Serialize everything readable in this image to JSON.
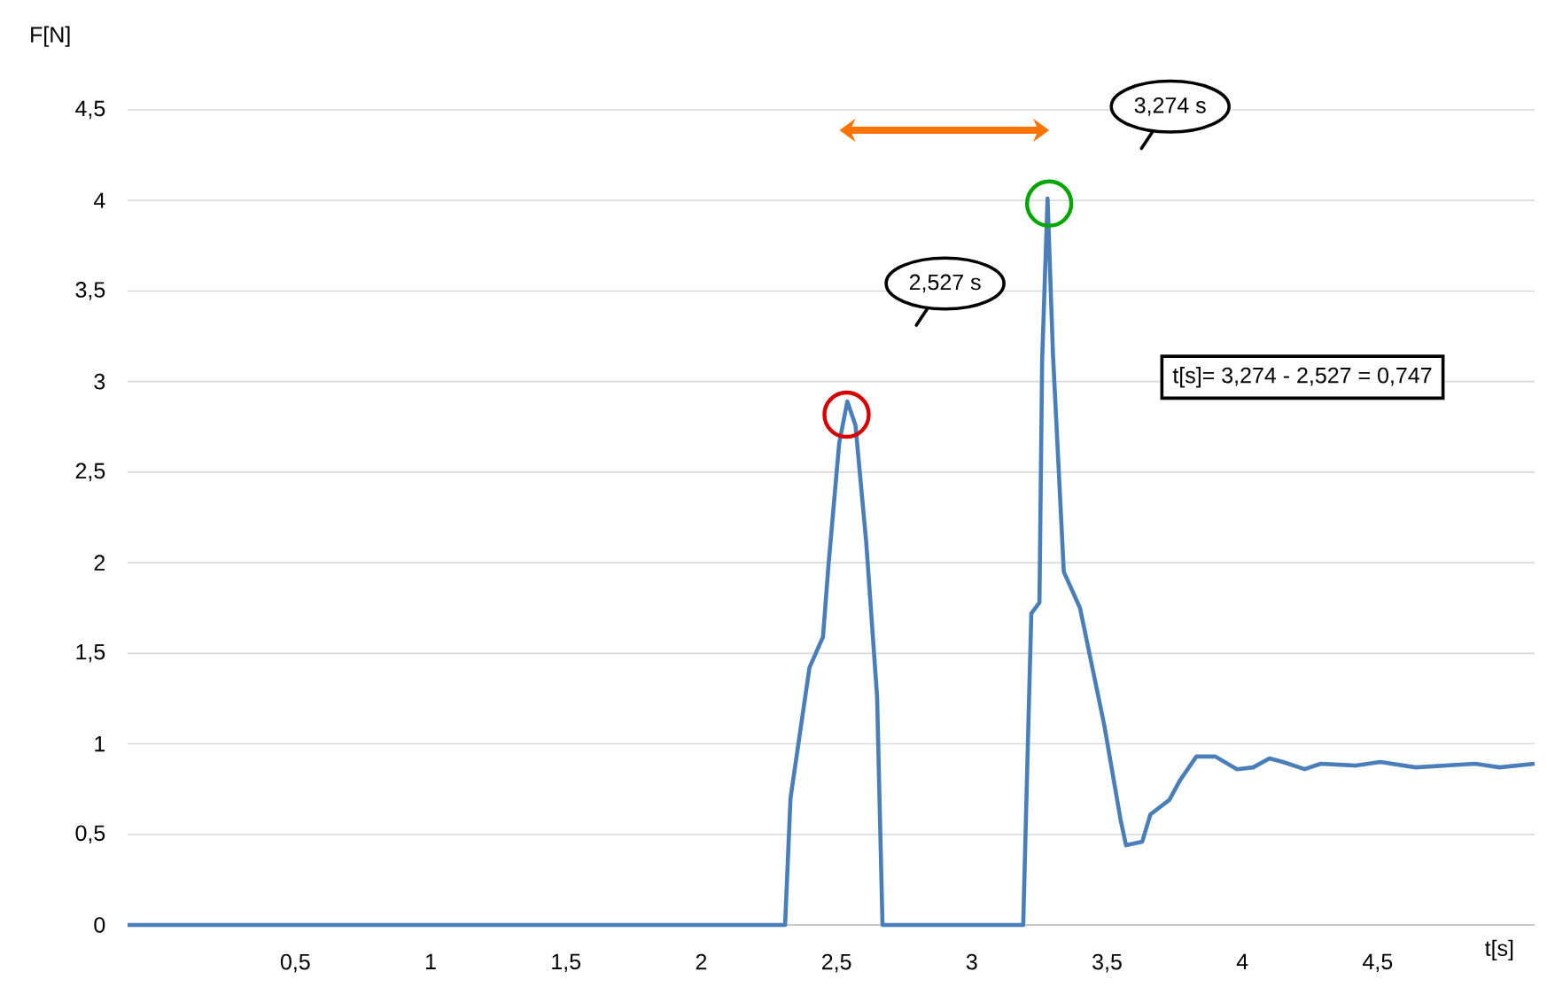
{
  "chart_data": {
    "type": "line",
    "xlabel": "t[s]",
    "ylabel": "F[N]",
    "annotations": [
      "2,527 s",
      "3,274 s",
      "t[s]= 3,274 - 2,527 = 0,747"
    ],
    "x": [
      -0.12,
      2.31,
      2.33,
      2.4,
      2.45,
      2.47,
      2.51,
      2.54,
      2.57,
      2.61,
      2.65,
      2.67,
      2.69,
      3.19,
      3.21,
      3.22,
      3.25,
      3.26,
      3.28,
      3.3,
      3.34,
      3.4,
      3.49,
      3.55,
      3.57,
      3.63,
      3.66,
      3.73,
      3.77,
      3.83,
      3.9,
      3.98,
      4.04,
      4.1,
      4.15,
      4.23,
      4.29,
      4.42,
      4.51,
      4.64,
      4.86,
      4.95,
      5.08
    ],
    "series": [
      {
        "color": "#4a7ebb",
        "values": [
          0,
          0,
          0.7,
          1.42,
          1.59,
          1.98,
          2.66,
          2.89,
          2.76,
          2.11,
          1.26,
          0,
          0,
          0,
          1.16,
          1.72,
          1.78,
          3.12,
          4.01,
          3.15,
          1.95,
          1.75,
          1.1,
          0.58,
          0.44,
          0.46,
          0.61,
          0.69,
          0.8,
          0.93,
          0.93,
          0.86,
          0.87,
          0.92,
          0.9,
          0.86,
          0.89,
          0.88,
          0.9,
          0.87,
          0.89,
          0.87,
          0.89
        ]
      }
    ],
    "xlim": [
      -0.12,
      5.08
    ],
    "ylim": [
      0,
      4.5
    ],
    "xticks": [
      {
        "value": 0.5,
        "label": "0,5"
      },
      1,
      {
        "value": 1.5,
        "label": "1,5"
      },
      2,
      {
        "value": 2.5,
        "label": "2,5"
      },
      3,
      {
        "value": 3.5,
        "label": "3,5"
      },
      4,
      {
        "value": 4.5,
        "label": "4,5"
      }
    ],
    "yticks": [
      0,
      {
        "value": 0.5,
        "label": "0,5"
      },
      1,
      {
        "value": 1.5,
        "label": "1,5"
      },
      2,
      {
        "value": 2.5,
        "label": "2,5"
      },
      3,
      {
        "value": 3.5,
        "label": "3,5"
      },
      4,
      {
        "value": 4.5,
        "label": "4,5"
      }
    ],
    "grid": "y"
  }
}
